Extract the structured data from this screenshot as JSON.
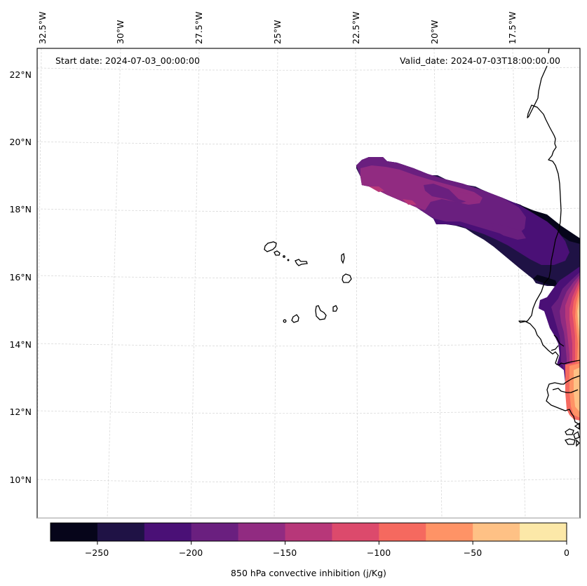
{
  "figure": {
    "start_date_label": "Start date: 2024-07-03_00:00:00",
    "valid_date_label": "Valid_date: 2024-07-03T18:00:00.00"
  },
  "map": {
    "variable": "850 hPa convective inhibition",
    "units": "j/Kg",
    "lon_ticks": [
      "32.5°W",
      "30°W",
      "27.5°W",
      "25°W",
      "22.5°W",
      "20°W",
      "17.5°W"
    ],
    "lat_ticks": [
      "22°N",
      "20°N",
      "18°N",
      "16°N",
      "14°N",
      "12°N",
      "10°N"
    ],
    "lon_values": [
      -32.5,
      -30,
      -27.5,
      -25,
      -22.5,
      -20,
      -17.5
    ],
    "lat_values": [
      22,
      20,
      18,
      16,
      14,
      12,
      10
    ],
    "extent": {
      "lon_min": -33.5,
      "lon_max": -15.6,
      "lat_min": 8.9,
      "lat_max": 22.8
    },
    "features": [
      "Cape Verde islands",
      "West African coastline (Mauritania, Senegal, Gambia, Guinea-Bissau)"
    ],
    "field_description": "CIN plume extending west-northwest from the African coast near 16-17°N to about 22.5°W, 19°N; strongest negative values (-250 to -200) along coast near 16-17°N; near-zero values (0 to -50) over land at 12-15°N along eastern edge"
  },
  "colorbar": {
    "label": "850 hPa convective inhibition (j/Kg)",
    "tick_labels": [
      "−250",
      "−200",
      "−150",
      "−100",
      "−50",
      "0"
    ],
    "tick_values": [
      -250,
      -200,
      -150,
      -100,
      -50,
      0
    ],
    "levels": [
      -275,
      -250,
      -225,
      -200,
      -175,
      -150,
      -125,
      -100,
      -75,
      -50,
      -25,
      0
    ],
    "colors": [
      "#06051a",
      "#1f1245",
      "#4a1076",
      "#6a1f7f",
      "#912b81",
      "#b73779",
      "#dc4a6c",
      "#f5695f",
      "#fe9366",
      "#fec185",
      "#fce8a8"
    ],
    "colormap": "magma"
  },
  "chart_data": {
    "type": "heatmap",
    "title": "",
    "top_left_annotation": "Start date: 2024-07-03_00:00:00",
    "top_right_annotation": "Valid_date: 2024-07-03T18:00:00.00",
    "xlabel": "",
    "ylabel": "",
    "x_tick_labels": [
      "32.5°W",
      "30°W",
      "27.5°W",
      "25°W",
      "22.5°W",
      "20°W",
      "17.5°W"
    ],
    "y_tick_labels": [
      "22°N",
      "20°N",
      "18°N",
      "16°N",
      "14°N",
      "12°N",
      "10°N"
    ],
    "xlim": [
      -33.5,
      -15.6
    ],
    "ylim": [
      8.9,
      22.8
    ],
    "grid": true,
    "colorbar_label": "850 hPa convective inhibition (j/Kg)",
    "colorbar_range": [
      -275,
      0
    ],
    "colorbar_ticks": [
      -250,
      -200,
      -150,
      -100,
      -50,
      0
    ],
    "colorbar_placement": "bottom",
    "levels": [
      -275,
      -250,
      -225,
      -200,
      -175,
      -150,
      -125,
      -100,
      -75,
      -50,
      -25,
      0
    ],
    "regions": [
      {
        "name": "western plume tip",
        "lon_range": [
          -22.5,
          -20.5
        ],
        "lat_range": [
          18.3,
          19.5
        ],
        "value_range": [
          -175,
          -125
        ]
      },
      {
        "name": "central plume",
        "lon_range": [
          -20.5,
          -18
        ],
        "lat_range": [
          17,
          18.7
        ],
        "value_range": [
          -200,
          -150
        ]
      },
      {
        "name": "eastern plume near coast",
        "lon_range": [
          -18,
          -15.6
        ],
        "lat_range": [
          15.7,
          17.8
        ],
        "value_range": [
          -275,
          -200
        ]
      },
      {
        "name": "coastal Senegal maximum",
        "lon_range": [
          -16.5,
          -15.6
        ],
        "lat_range": [
          13,
          15.5
        ],
        "value_range": [
          -225,
          0
        ]
      },
      {
        "name": "Gambia / Guinea-Bissau",
        "lon_range": [
          -16.2,
          -15.6
        ],
        "lat_range": [
          11.6,
          13
        ],
        "value_range": [
          -100,
          0
        ]
      }
    ]
  }
}
